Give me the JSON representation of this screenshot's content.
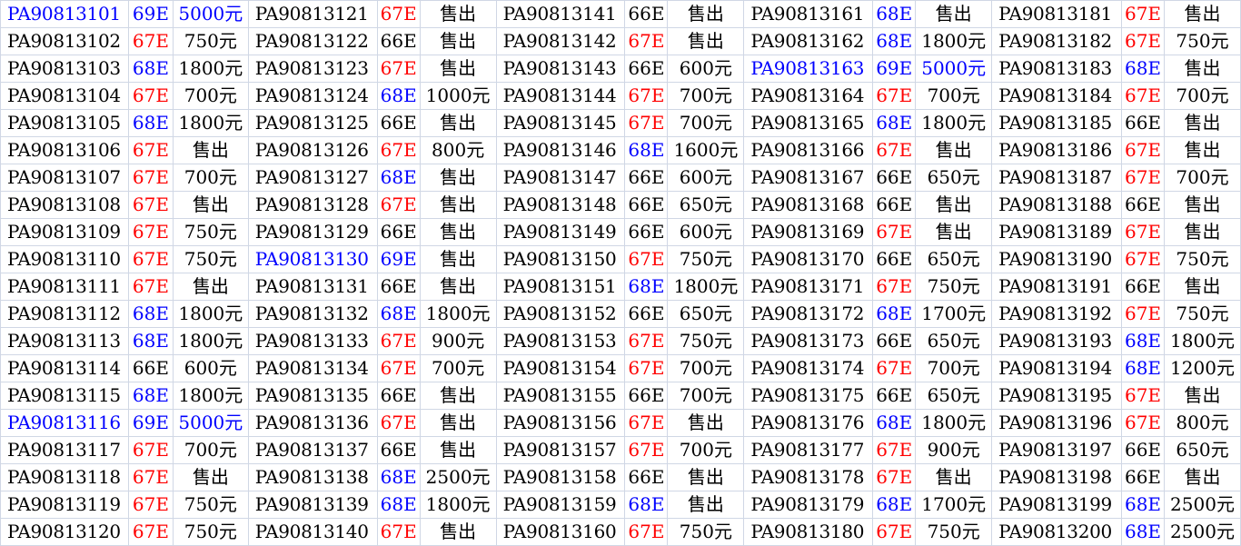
{
  "grade_colors": {
    "69E": "#0000ff",
    "68E": "#0000ff",
    "67E": "#ff0000",
    "66E": "#000000"
  },
  "highlight_color": "#0000ff",
  "highlight_grade": "69E",
  "groups": [
    [
      {
        "id": "PA90813101",
        "grade": "69E",
        "price": "5000元"
      },
      {
        "id": "PA90813102",
        "grade": "67E",
        "price": "750元"
      },
      {
        "id": "PA90813103",
        "grade": "68E",
        "price": "1800元"
      },
      {
        "id": "PA90813104",
        "grade": "67E",
        "price": "700元"
      },
      {
        "id": "PA90813105",
        "grade": "68E",
        "price": "1800元"
      },
      {
        "id": "PA90813106",
        "grade": "67E",
        "price": "售出"
      },
      {
        "id": "PA90813107",
        "grade": "67E",
        "price": "700元"
      },
      {
        "id": "PA90813108",
        "grade": "67E",
        "price": "售出"
      },
      {
        "id": "PA90813109",
        "grade": "67E",
        "price": "750元"
      },
      {
        "id": "PA90813110",
        "grade": "67E",
        "price": "750元"
      },
      {
        "id": "PA90813111",
        "grade": "67E",
        "price": "售出"
      },
      {
        "id": "PA90813112",
        "grade": "68E",
        "price": "1800元"
      },
      {
        "id": "PA90813113",
        "grade": "68E",
        "price": "1800元"
      },
      {
        "id": "PA90813114",
        "grade": "66E",
        "price": "600元"
      },
      {
        "id": "PA90813115",
        "grade": "68E",
        "price": "1800元"
      },
      {
        "id": "PA90813116",
        "grade": "69E",
        "price": "5000元"
      },
      {
        "id": "PA90813117",
        "grade": "67E",
        "price": "700元"
      },
      {
        "id": "PA90813118",
        "grade": "67E",
        "price": "售出"
      },
      {
        "id": "PA90813119",
        "grade": "67E",
        "price": "750元"
      },
      {
        "id": "PA90813120",
        "grade": "67E",
        "price": "750元"
      }
    ],
    [
      {
        "id": "PA90813121",
        "grade": "67E",
        "price": "售出"
      },
      {
        "id": "PA90813122",
        "grade": "66E",
        "price": "售出"
      },
      {
        "id": "PA90813123",
        "grade": "67E",
        "price": "售出"
      },
      {
        "id": "PA90813124",
        "grade": "68E",
        "price": "1000元"
      },
      {
        "id": "PA90813125",
        "grade": "66E",
        "price": "售出"
      },
      {
        "id": "PA90813126",
        "grade": "67E",
        "price": "800元"
      },
      {
        "id": "PA90813127",
        "grade": "68E",
        "price": "售出"
      },
      {
        "id": "PA90813128",
        "grade": "67E",
        "price": "售出"
      },
      {
        "id": "PA90813129",
        "grade": "66E",
        "price": "售出"
      },
      {
        "id": "PA90813130",
        "grade": "69E",
        "price": "售出"
      },
      {
        "id": "PA90813131",
        "grade": "66E",
        "price": "售出"
      },
      {
        "id": "PA90813132",
        "grade": "68E",
        "price": "1800元"
      },
      {
        "id": "PA90813133",
        "grade": "67E",
        "price": "900元"
      },
      {
        "id": "PA90813134",
        "grade": "67E",
        "price": "700元"
      },
      {
        "id": "PA90813135",
        "grade": "66E",
        "price": "售出"
      },
      {
        "id": "PA90813136",
        "grade": "67E",
        "price": "售出"
      },
      {
        "id": "PA90813137",
        "grade": "66E",
        "price": "售出"
      },
      {
        "id": "PA90813138",
        "grade": "68E",
        "price": "2500元"
      },
      {
        "id": "PA90813139",
        "grade": "68E",
        "price": "1800元"
      },
      {
        "id": "PA90813140",
        "grade": "67E",
        "price": "售出"
      }
    ],
    [
      {
        "id": "PA90813141",
        "grade": "66E",
        "price": "售出"
      },
      {
        "id": "PA90813142",
        "grade": "67E",
        "price": "售出"
      },
      {
        "id": "PA90813143",
        "grade": "66E",
        "price": "600元"
      },
      {
        "id": "PA90813144",
        "grade": "67E",
        "price": "700元"
      },
      {
        "id": "PA90813145",
        "grade": "67E",
        "price": "700元"
      },
      {
        "id": "PA90813146",
        "grade": "68E",
        "price": "1600元"
      },
      {
        "id": "PA90813147",
        "grade": "66E",
        "price": "600元"
      },
      {
        "id": "PA90813148",
        "grade": "66E",
        "price": "650元"
      },
      {
        "id": "PA90813149",
        "grade": "66E",
        "price": "600元"
      },
      {
        "id": "PA90813150",
        "grade": "67E",
        "price": "750元"
      },
      {
        "id": "PA90813151",
        "grade": "68E",
        "price": "1800元"
      },
      {
        "id": "PA90813152",
        "grade": "66E",
        "price": "650元"
      },
      {
        "id": "PA90813153",
        "grade": "67E",
        "price": "750元"
      },
      {
        "id": "PA90813154",
        "grade": "67E",
        "price": "700元"
      },
      {
        "id": "PA90813155",
        "grade": "66E",
        "price": "700元"
      },
      {
        "id": "PA90813156",
        "grade": "67E",
        "price": "售出"
      },
      {
        "id": "PA90813157",
        "grade": "67E",
        "price": "700元"
      },
      {
        "id": "PA90813158",
        "grade": "66E",
        "price": "售出"
      },
      {
        "id": "PA90813159",
        "grade": "68E",
        "price": "售出"
      },
      {
        "id": "PA90813160",
        "grade": "67E",
        "price": "750元"
      }
    ],
    [
      {
        "id": "PA90813161",
        "grade": "68E",
        "price": "售出"
      },
      {
        "id": "PA90813162",
        "grade": "68E",
        "price": "1800元"
      },
      {
        "id": "PA90813163",
        "grade": "69E",
        "price": "5000元"
      },
      {
        "id": "PA90813164",
        "grade": "67E",
        "price": "700元"
      },
      {
        "id": "PA90813165",
        "grade": "68E",
        "price": "1800元"
      },
      {
        "id": "PA90813166",
        "grade": "67E",
        "price": "售出"
      },
      {
        "id": "PA90813167",
        "grade": "66E",
        "price": "650元"
      },
      {
        "id": "PA90813168",
        "grade": "66E",
        "price": "售出"
      },
      {
        "id": "PA90813169",
        "grade": "67E",
        "price": "售出"
      },
      {
        "id": "PA90813170",
        "grade": "66E",
        "price": "650元"
      },
      {
        "id": "PA90813171",
        "grade": "67E",
        "price": "750元"
      },
      {
        "id": "PA90813172",
        "grade": "68E",
        "price": "1700元"
      },
      {
        "id": "PA90813173",
        "grade": "66E",
        "price": "650元"
      },
      {
        "id": "PA90813174",
        "grade": "67E",
        "price": "700元"
      },
      {
        "id": "PA90813175",
        "grade": "66E",
        "price": "650元"
      },
      {
        "id": "PA90813176",
        "grade": "68E",
        "price": "1800元"
      },
      {
        "id": "PA90813177",
        "grade": "67E",
        "price": "900元"
      },
      {
        "id": "PA90813178",
        "grade": "67E",
        "price": "售出"
      },
      {
        "id": "PA90813179",
        "grade": "68E",
        "price": "1700元"
      },
      {
        "id": "PA90813180",
        "grade": "67E",
        "price": "750元"
      }
    ],
    [
      {
        "id": "PA90813181",
        "grade": "67E",
        "price": "售出"
      },
      {
        "id": "PA90813182",
        "grade": "67E",
        "price": "750元"
      },
      {
        "id": "PA90813183",
        "grade": "68E",
        "price": "售出"
      },
      {
        "id": "PA90813184",
        "grade": "67E",
        "price": "700元"
      },
      {
        "id": "PA90813185",
        "grade": "66E",
        "price": "售出"
      },
      {
        "id": "PA90813186",
        "grade": "67E",
        "price": "售出"
      },
      {
        "id": "PA90813187",
        "grade": "67E",
        "price": "700元"
      },
      {
        "id": "PA90813188",
        "grade": "66E",
        "price": "售出"
      },
      {
        "id": "PA90813189",
        "grade": "67E",
        "price": "售出"
      },
      {
        "id": "PA90813190",
        "grade": "67E",
        "price": "750元"
      },
      {
        "id": "PA90813191",
        "grade": "66E",
        "price": "售出"
      },
      {
        "id": "PA90813192",
        "grade": "67E",
        "price": "750元"
      },
      {
        "id": "PA90813193",
        "grade": "68E",
        "price": "1800元"
      },
      {
        "id": "PA90813194",
        "grade": "68E",
        "price": "1200元"
      },
      {
        "id": "PA90813195",
        "grade": "67E",
        "price": "售出"
      },
      {
        "id": "PA90813196",
        "grade": "67E",
        "price": "800元"
      },
      {
        "id": "PA90813197",
        "grade": "66E",
        "price": "650元"
      },
      {
        "id": "PA90813198",
        "grade": "66E",
        "price": "售出"
      },
      {
        "id": "PA90813199",
        "grade": "68E",
        "price": "2500元"
      },
      {
        "id": "PA90813200",
        "grade": "68E",
        "price": "2500元"
      }
    ]
  ]
}
